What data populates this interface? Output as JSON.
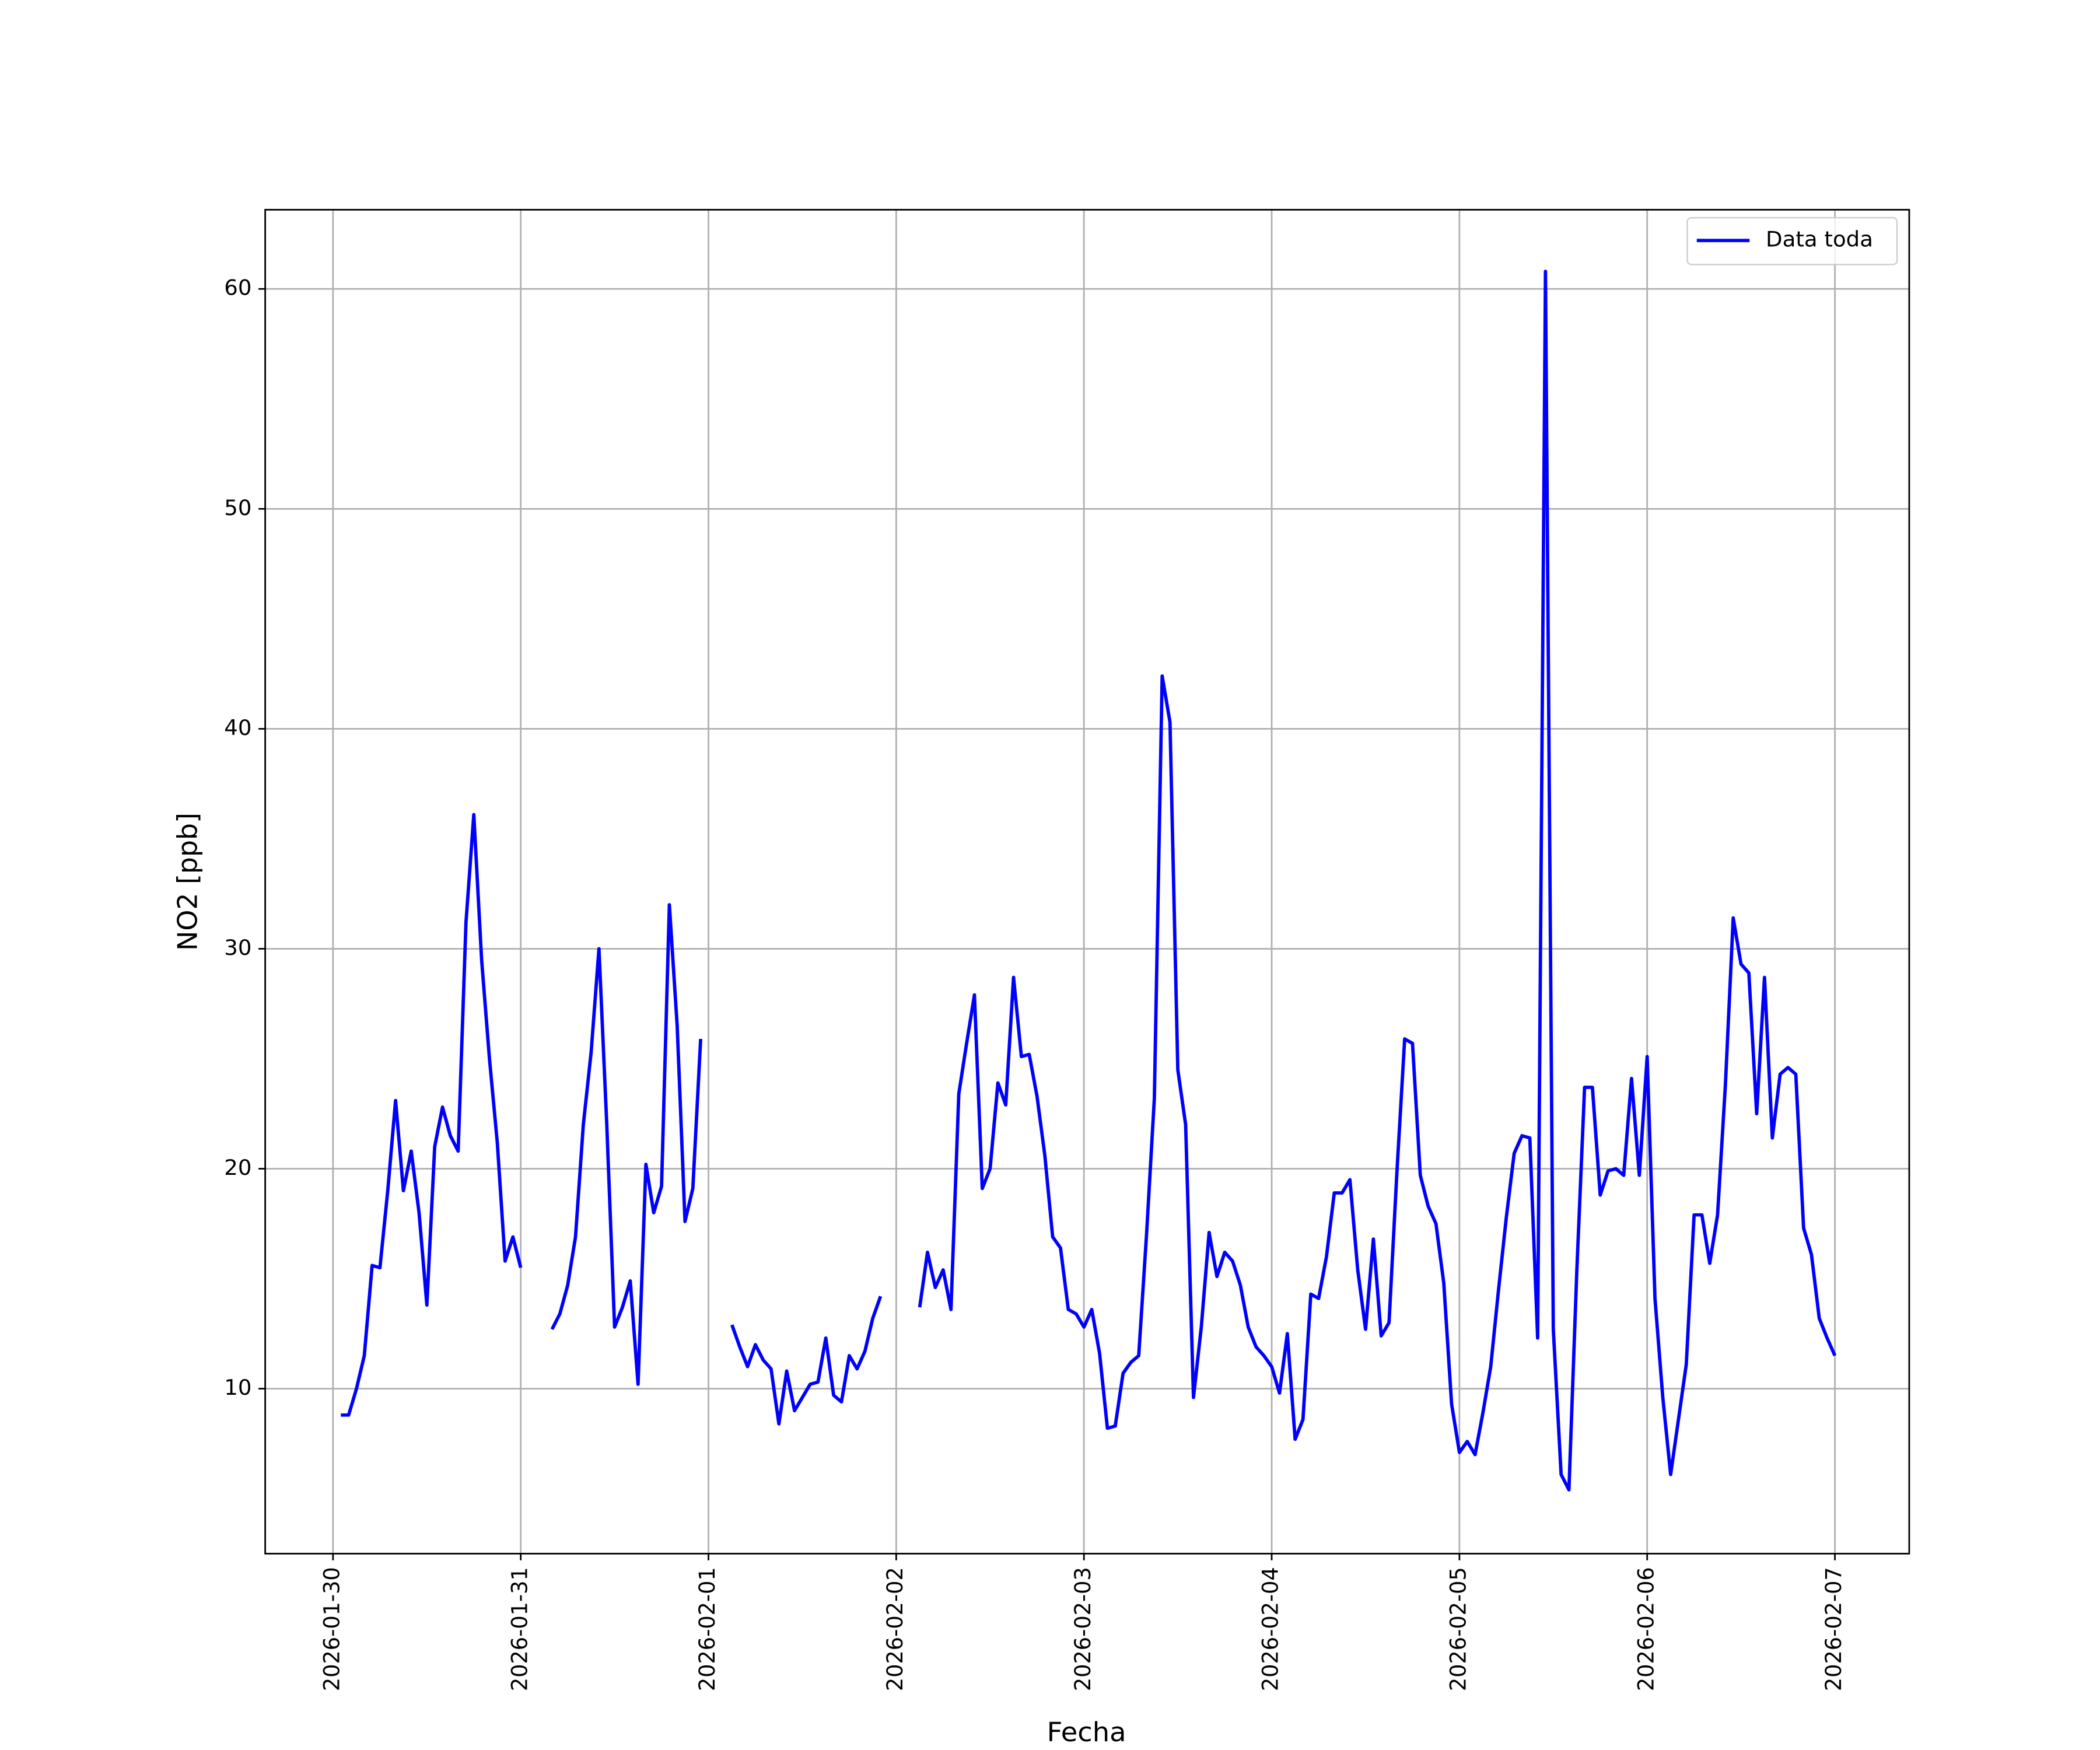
{
  "chart_data": {
    "type": "line",
    "xlabel": "Fecha",
    "ylabel": "NO2 [ppb]",
    "x": [
      "2026-01-30T01:00",
      "2026-01-30T02:00",
      "2026-01-30T03:00",
      "2026-01-30T04:00",
      "2026-01-30T05:00",
      "2026-01-30T06:00",
      "2026-01-30T07:00",
      "2026-01-30T08:00",
      "2026-01-30T09:00",
      "2026-01-30T10:00",
      "2026-01-30T11:00",
      "2026-01-30T12:00",
      "2026-01-30T13:00",
      "2026-01-30T14:00",
      "2026-01-30T15:00",
      "2026-01-30T16:00",
      "2026-01-30T17:00",
      "2026-01-30T18:00",
      "2026-01-30T19:00",
      "2026-01-30T20:00",
      "2026-01-30T21:00",
      "2026-01-30T22:00",
      "2026-01-30T23:00",
      "2026-01-31T00:00",
      "2026-01-31T01:00",
      "2026-01-31T04:00",
      "2026-01-31T05:00",
      "2026-01-31T06:00",
      "2026-01-31T07:00",
      "2026-01-31T08:00",
      "2026-01-31T09:00",
      "2026-01-31T10:00",
      "2026-01-31T11:00",
      "2026-01-31T12:00",
      "2026-01-31T13:00",
      "2026-01-31T14:00",
      "2026-01-31T15:00",
      "2026-01-31T16:00",
      "2026-01-31T17:00",
      "2026-01-31T18:00",
      "2026-01-31T19:00",
      "2026-01-31T20:00",
      "2026-01-31T21:00",
      "2026-01-31T22:00",
      "2026-01-31T23:00",
      "2026-02-01T00:00",
      "2026-02-01T03:00",
      "2026-02-01T04:00",
      "2026-02-01T05:00",
      "2026-02-01T06:00",
      "2026-02-01T07:00",
      "2026-02-01T08:00",
      "2026-02-01T09:00",
      "2026-02-01T10:00",
      "2026-02-01T11:00",
      "2026-02-01T12:00",
      "2026-02-01T13:00",
      "2026-02-01T14:00",
      "2026-02-01T15:00",
      "2026-02-01T16:00",
      "2026-02-01T17:00",
      "2026-02-01T18:00",
      "2026-02-01T19:00",
      "2026-02-01T20:00",
      "2026-02-01T21:00",
      "2026-02-01T22:00",
      "2026-02-01T23:00",
      "2026-02-02T03:00",
      "2026-02-02T04:00",
      "2026-02-02T05:00",
      "2026-02-02T06:00",
      "2026-02-02T07:00",
      "2026-02-02T08:00",
      "2026-02-02T09:00",
      "2026-02-02T10:00",
      "2026-02-02T11:00",
      "2026-02-02T12:00",
      "2026-02-02T13:00",
      "2026-02-02T14:00",
      "2026-02-02T15:00",
      "2026-02-02T16:00",
      "2026-02-02T17:00",
      "2026-02-02T18:00",
      "2026-02-02T19:00",
      "2026-02-02T20:00",
      "2026-02-02T21:00",
      "2026-02-02T22:00",
      "2026-02-02T23:00",
      "2026-02-03T00:00",
      "2026-02-03T01:00",
      "2026-02-03T02:00",
      "2026-02-03T03:00",
      "2026-02-03T04:00",
      "2026-02-03T05:00",
      "2026-02-03T06:00",
      "2026-02-03T07:00",
      "2026-02-03T08:00",
      "2026-02-03T09:00",
      "2026-02-03T10:00",
      "2026-02-03T11:00",
      "2026-02-03T12:00",
      "2026-02-03T13:00",
      "2026-02-03T14:00",
      "2026-02-03T15:00",
      "2026-02-03T16:00",
      "2026-02-03T17:00",
      "2026-02-03T18:00",
      "2026-02-03T19:00",
      "2026-02-03T20:00",
      "2026-02-03T21:00",
      "2026-02-03T22:00",
      "2026-02-03T23:00",
      "2026-02-04T00:00",
      "2026-02-04T01:00",
      "2026-02-04T02:00",
      "2026-02-04T03:00",
      "2026-02-04T04:00",
      "2026-02-04T05:00",
      "2026-02-04T06:00",
      "2026-02-04T07:00",
      "2026-02-04T08:00",
      "2026-02-04T09:00",
      "2026-02-04T10:00",
      "2026-02-04T11:00",
      "2026-02-04T12:00",
      "2026-02-04T13:00",
      "2026-02-04T14:00",
      "2026-02-04T15:00",
      "2026-02-04T16:00",
      "2026-02-04T17:00",
      "2026-02-04T18:00",
      "2026-02-04T19:00",
      "2026-02-04T20:00",
      "2026-02-04T21:00",
      "2026-02-04T22:00",
      "2026-02-04T23:00",
      "2026-02-05T00:00",
      "2026-02-05T01:00",
      "2026-02-05T02:00",
      "2026-02-05T03:00",
      "2026-02-05T04:00",
      "2026-02-05T05:00",
      "2026-02-05T06:00",
      "2026-02-05T07:00",
      "2026-02-05T08:00",
      "2026-02-05T09:00",
      "2026-02-05T10:00",
      "2026-02-05T11:00",
      "2026-02-05T12:00",
      "2026-02-05T13:00",
      "2026-02-05T14:00",
      "2026-02-05T15:00",
      "2026-02-05T16:00",
      "2026-02-05T17:00",
      "2026-02-05T18:00",
      "2026-02-05T19:00",
      "2026-02-05T20:00",
      "2026-02-05T21:00",
      "2026-02-05T22:00",
      "2026-02-05T23:00",
      "2026-02-06T00:00",
      "2026-02-06T01:00",
      "2026-02-06T02:00",
      "2026-02-06T03:00",
      "2026-02-06T04:00",
      "2026-02-06T05:00",
      "2026-02-06T06:00",
      "2026-02-06T07:00",
      "2026-02-06T08:00",
      "2026-02-06T09:00",
      "2026-02-06T10:00",
      "2026-02-06T11:00",
      "2026-02-06T12:00",
      "2026-02-06T13:00",
      "2026-02-06T14:00",
      "2026-02-06T15:00",
      "2026-02-06T16:00",
      "2026-02-06T17:00",
      "2026-02-06T18:00",
      "2026-02-06T19:00",
      "2026-02-06T20:00",
      "2026-02-06T21:00",
      "2026-02-06T22:00",
      "2026-02-06T23:00",
      "2026-02-07T00:00"
    ],
    "series": [
      {
        "name": "Data toda",
        "color": "#0000ff",
        "values": [
          8.8,
          8.8,
          10.0,
          11.5,
          15.6,
          15.5,
          19.0,
          23.1,
          19.0,
          20.8,
          18.0,
          13.8,
          21.0,
          22.8,
          21.5,
          20.8,
          31.2,
          36.1,
          29.5,
          25.0,
          21.2,
          15.8,
          16.9,
          15.5,
          null,
          12.7,
          13.4,
          14.7,
          16.9,
          22.0,
          25.3,
          30.0,
          22.0,
          12.8,
          13.7,
          14.9,
          10.2,
          20.2,
          18.0,
          19.2,
          32.0,
          26.5,
          17.6,
          19.1,
          25.9,
          null,
          12.9,
          11.9,
          11.0,
          12.0,
          11.3,
          10.9,
          8.4,
          10.8,
          9.0,
          9.6,
          10.2,
          10.3,
          12.3,
          9.7,
          9.4,
          11.5,
          10.9,
          11.7,
          13.2,
          14.2,
          null,
          13.7,
          16.2,
          14.6,
          15.4,
          13.6,
          23.4,
          25.7,
          27.9,
          19.1,
          20.0,
          23.9,
          22.9,
          28.7,
          25.1,
          25.2,
          23.3,
          20.6,
          16.9,
          16.4,
          13.6,
          13.4,
          12.8,
          13.6,
          11.6,
          8.2,
          8.3,
          10.7,
          11.2,
          11.5,
          17.0,
          23.2,
          42.4,
          40.3,
          24.5,
          22.0,
          9.6,
          12.8,
          17.1,
          15.1,
          16.2,
          15.8,
          14.7,
          12.8,
          11.9,
          11.5,
          11.0,
          9.8,
          12.5,
          7.7,
          8.6,
          14.3,
          14.1,
          16.0,
          18.9,
          18.9,
          19.5,
          15.4,
          12.7,
          16.8,
          12.4,
          13.0,
          19.8,
          25.9,
          25.7,
          19.7,
          18.3,
          17.5,
          14.8,
          9.3,
          7.1,
          7.6,
          7.0,
          8.9,
          11.0,
          14.5,
          17.8,
          20.7,
          21.5,
          21.4,
          12.3,
          60.8,
          12.7,
          6.1,
          5.4,
          15.3,
          23.7,
          23.7,
          18.8,
          19.9,
          20.0,
          19.7,
          24.1,
          19.7,
          25.1,
          14.1,
          9.6,
          6.1,
          8.6,
          11.1,
          17.9,
          17.9,
          15.7,
          17.9,
          23.8,
          31.4,
          29.3,
          28.9,
          22.5,
          28.7,
          21.4,
          24.3,
          24.6,
          24.3,
          17.3,
          16.1,
          13.2,
          12.3,
          11.5
        ]
      }
    ],
    "xlim": [
      "2026-01-29T15:20",
      "2026-02-07T09:30"
    ],
    "xticks": [
      "2026-01-30",
      "2026-01-31",
      "2026-02-01",
      "2026-02-02",
      "2026-02-03",
      "2026-02-04",
      "2026-02-05",
      "2026-02-06",
      "2026-02-07"
    ],
    "ylim": [
      2.5,
      63.6
    ],
    "yticks": [
      10,
      20,
      30,
      40,
      50,
      60
    ],
    "grid": true,
    "legend": "upper right"
  }
}
